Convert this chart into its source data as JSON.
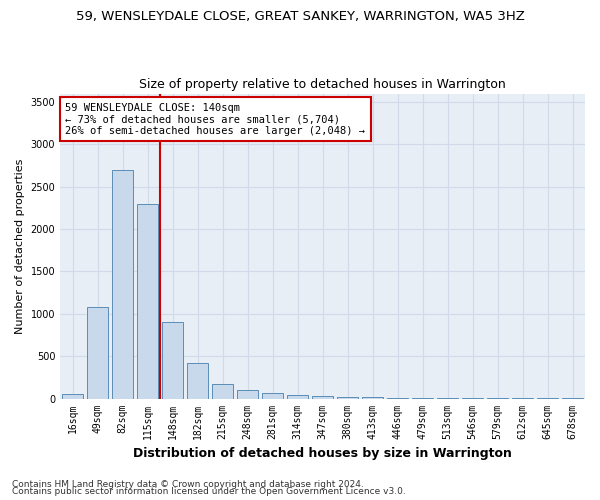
{
  "title": "59, WENSLEYDALE CLOSE, GREAT SANKEY, WARRINGTON, WA5 3HZ",
  "subtitle": "Size of property relative to detached houses in Warrington",
  "xlabel": "Distribution of detached houses by size in Warrington",
  "ylabel": "Number of detached properties",
  "categories": [
    "16sqm",
    "49sqm",
    "82sqm",
    "115sqm",
    "148sqm",
    "182sqm",
    "215sqm",
    "248sqm",
    "281sqm",
    "314sqm",
    "347sqm",
    "380sqm",
    "413sqm",
    "446sqm",
    "479sqm",
    "513sqm",
    "546sqm",
    "579sqm",
    "612sqm",
    "645sqm",
    "678sqm"
  ],
  "values": [
    55,
    1080,
    2700,
    2300,
    900,
    420,
    170,
    100,
    60,
    40,
    25,
    20,
    15,
    10,
    5,
    3,
    2,
    2,
    1,
    1,
    1
  ],
  "bar_color": "#c9d9ec",
  "bar_edge_color": "#5b8db8",
  "grid_color": "#d0dae8",
  "background_color": "#e8eef6",
  "vline_color": "#cc0000",
  "annotation_text": "59 WENSLEYDALE CLOSE: 140sqm\n← 73% of detached houses are smaller (5,704)\n26% of semi-detached houses are larger (2,048) →",
  "annotation_box_color": "#ffffff",
  "annotation_box_edge": "#cc0000",
  "ylim": [
    0,
    3600
  ],
  "yticks": [
    0,
    500,
    1000,
    1500,
    2000,
    2500,
    3000,
    3500
  ],
  "footer1": "Contains HM Land Registry data © Crown copyright and database right 2024.",
  "footer2": "Contains public sector information licensed under the Open Government Licence v3.0.",
  "title_fontsize": 9.5,
  "subtitle_fontsize": 9,
  "xlabel_fontsize": 9,
  "ylabel_fontsize": 8,
  "tick_fontsize": 7,
  "footer_fontsize": 6.5,
  "annot_fontsize": 7.5
}
